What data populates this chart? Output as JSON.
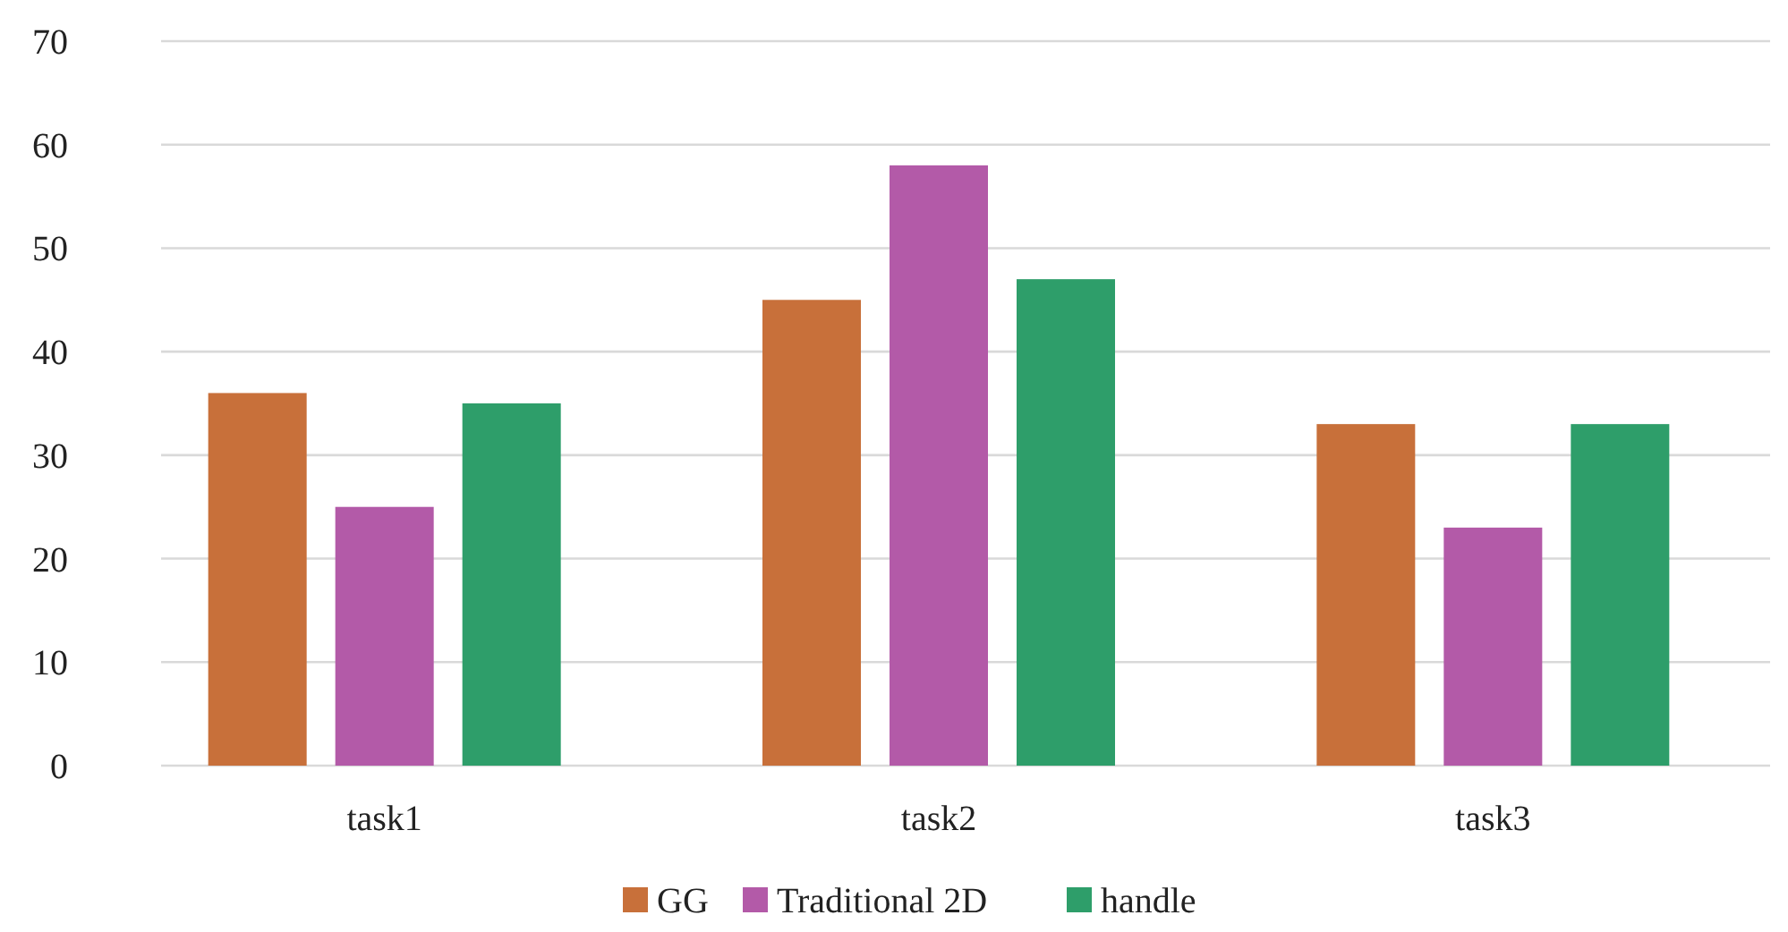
{
  "chart_data": {
    "type": "bar",
    "categories": [
      "task1",
      "task2",
      "task3"
    ],
    "series": [
      {
        "name": "GG",
        "color": "#c8703a",
        "values": [
          36,
          45,
          33
        ]
      },
      {
        "name": "Traditional 2D",
        "color": "#b35aa8",
        "values": [
          25,
          58,
          23
        ]
      },
      {
        "name": "handle",
        "color": "#2e9e6a",
        "values": [
          35,
          47,
          33
        ]
      }
    ],
    "ylim": [
      0,
      70
    ],
    "yticks": [
      0,
      10,
      20,
      30,
      40,
      50,
      60,
      70
    ],
    "grid": "y",
    "legend": "bottom"
  }
}
